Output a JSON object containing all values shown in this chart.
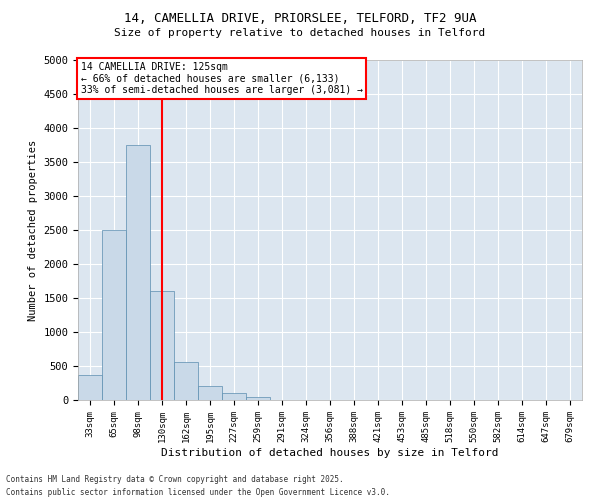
{
  "title_line1": "14, CAMELLIA DRIVE, PRIORSLEE, TELFORD, TF2 9UA",
  "title_line2": "Size of property relative to detached houses in Telford",
  "xlabel": "Distribution of detached houses by size in Telford",
  "ylabel": "Number of detached properties",
  "bar_values": [
    370,
    2500,
    3750,
    1600,
    560,
    200,
    100,
    50,
    0,
    0,
    0,
    0,
    0,
    0,
    0,
    0,
    0,
    0,
    0,
    0,
    0
  ],
  "categories": [
    "33sqm",
    "65sqm",
    "98sqm",
    "130sqm",
    "162sqm",
    "195sqm",
    "227sqm",
    "259sqm",
    "291sqm",
    "324sqm",
    "356sqm",
    "388sqm",
    "421sqm",
    "453sqm",
    "485sqm",
    "518sqm",
    "550sqm",
    "582sqm",
    "614sqm",
    "647sqm",
    "679sqm"
  ],
  "bar_color": "#c9d9e8",
  "bar_edge_color": "#5a8db0",
  "background_color": "#dce6f0",
  "grid_color": "#ffffff",
  "vline_color": "#ff0000",
  "annotation_box_text": "14 CAMELLIA DRIVE: 125sqm\n← 66% of detached houses are smaller (6,133)\n33% of semi-detached houses are larger (3,081) →",
  "annotation_box_edge_color": "#ff0000",
  "ylim": [
    0,
    5000
  ],
  "yticks": [
    0,
    500,
    1000,
    1500,
    2000,
    2500,
    3000,
    3500,
    4000,
    4500,
    5000
  ],
  "footer_line1": "Contains HM Land Registry data © Crown copyright and database right 2025.",
  "footer_line2": "Contains public sector information licensed under the Open Government Licence v3.0.",
  "vline_position": 3.5
}
